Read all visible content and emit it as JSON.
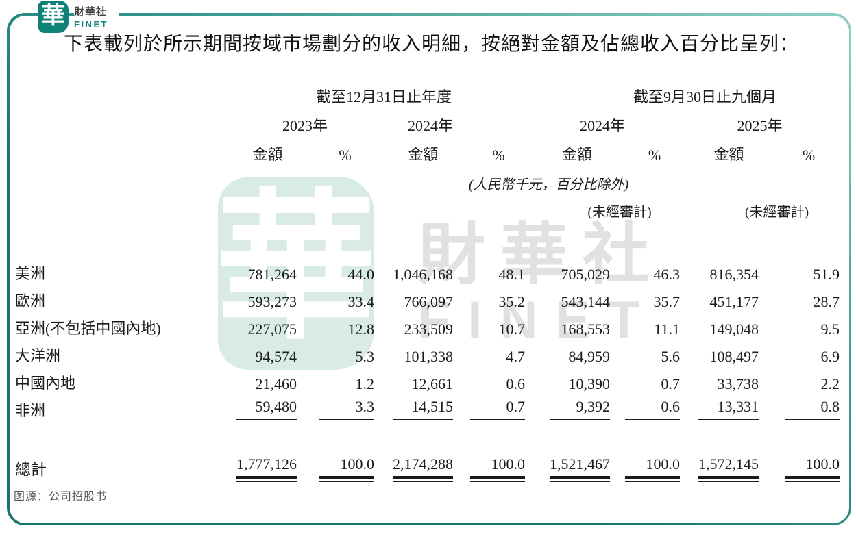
{
  "logo": {
    "seal_char": "華",
    "name_cn": "財華社",
    "name_en": "FINET"
  },
  "watermark": {
    "seal_char": "華",
    "text_cn": "財華社",
    "text_en": "FINET"
  },
  "heading": "下表載列於所示期間按域市場劃分的收入明細，按絕對金額及佔總收入百分比呈列：",
  "caption": "图源：公司招股书",
  "colors": {
    "brand_teal": "#0F8177",
    "frame_teal_dark": "#14766E",
    "frame_teal_light": "#8FD0C7",
    "watermark_seal": "#D8EBE7",
    "watermark_text": "#E1E1E1",
    "rule_black": "#1A1A1A",
    "caption_gray": "#595959"
  },
  "table": {
    "group_headers": [
      "截至12月31日止年度",
      "截至9月30日止九個月"
    ],
    "year_headers": [
      "2023年",
      "2024年",
      "2024年",
      "2025年"
    ],
    "measure_headers": [
      "金額",
      "%",
      "金額",
      "%",
      "金額",
      "%",
      "金額",
      "%"
    ],
    "unit_note": "(人民幣千元，百分比除外)",
    "unaudited_note_1": "(未經審計)",
    "unaudited_note_2": "(未經審計)",
    "rows": [
      {
        "label": "美洲",
        "values": [
          "781,264",
          "44.0",
          "1,046,168",
          "48.1",
          "705,029",
          "46.3",
          "816,354",
          "51.9"
        ]
      },
      {
        "label": "歐洲",
        "values": [
          "593,273",
          "33.4",
          "766,097",
          "35.2",
          "543,144",
          "35.7",
          "451,177",
          "28.7"
        ]
      },
      {
        "label": "亞洲(不包括中國內地)",
        "values": [
          "227,075",
          "12.8",
          "233,509",
          "10.7",
          "168,553",
          "11.1",
          "149,048",
          "9.5"
        ]
      },
      {
        "label": "大洋洲",
        "values": [
          "94,574",
          "5.3",
          "101,338",
          "4.7",
          "84,959",
          "5.6",
          "108,497",
          "6.9"
        ]
      },
      {
        "label": "中國內地",
        "values": [
          "21,460",
          "1.2",
          "12,661",
          "0.6",
          "10,390",
          "0.7",
          "33,738",
          "2.2"
        ]
      },
      {
        "label": "非洲",
        "values": [
          "59,480",
          "3.3",
          "14,515",
          "0.7",
          "9,392",
          "0.6",
          "13,331",
          "0.8"
        ]
      }
    ],
    "total_row": {
      "label": "總計",
      "values": [
        "1,777,126",
        "100.0",
        "2,174,288",
        "100.0",
        "1,521,467",
        "100.0",
        "1,572,145",
        "100.0"
      ]
    }
  }
}
